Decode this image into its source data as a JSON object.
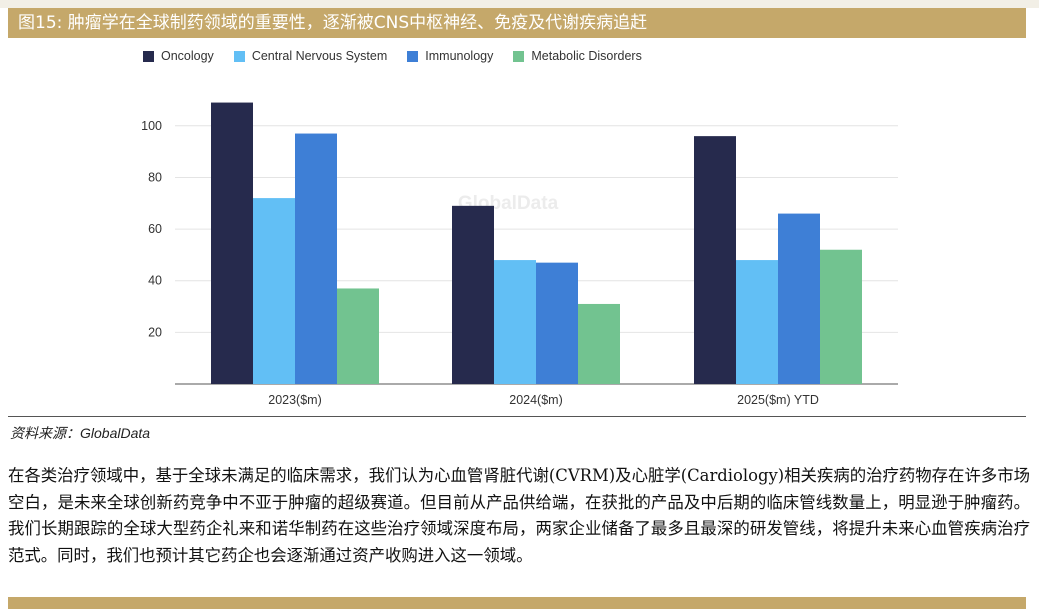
{
  "figure": {
    "title": "图15:  肿瘤学在全球制药领域的重要性，逐渐被CNS中枢神经、免疫及代谢疾病追赶",
    "source_label": "资料来源：",
    "source_name": "GlobalData"
  },
  "chart_data": {
    "type": "bar",
    "categories": [
      "2023($m)",
      "2024($m)",
      "2025($m) YTD"
    ],
    "series": [
      {
        "name": "Oncology",
        "color": "#262a4d",
        "values": [
          109,
          69,
          96
        ]
      },
      {
        "name": "Central Nervous System",
        "color": "#62bff5",
        "values": [
          72,
          48,
          48
        ]
      },
      {
        "name": "Immunology",
        "color": "#3e7fd6",
        "values": [
          97,
          47,
          66
        ]
      },
      {
        "name": "Metabolic Disorders",
        "color": "#72c390",
        "values": [
          37,
          31,
          52
        ]
      }
    ],
    "y_ticks": [
      20,
      40,
      60,
      80,
      100
    ],
    "ylim": [
      0,
      115
    ],
    "grid": true,
    "legend_position": "top-left",
    "watermark": "GlobalData"
  },
  "body_text": "在各类治疗领域中，基于全球未满足的临床需求，我们认为心血管肾脏代谢(CVRM)及心脏学(Cardiology)相关疾病的治疗药物存在许多市场空白，是未来全球创新药竞争中不亚于肿瘤的超级赛道。但目前从产品供给端，在获批的产品及中后期的临床管线数量上，明显逊于肿瘤药。我们长期跟踪的全球大型药企礼来和诺华制药在这些治疗领域深度布局，两家企业储备了最多且最深的研发管线，将提升未来心血管疾病治疗范式。同时，我们也预计其它药企也会逐渐通过资产收购进入这一领域。"
}
